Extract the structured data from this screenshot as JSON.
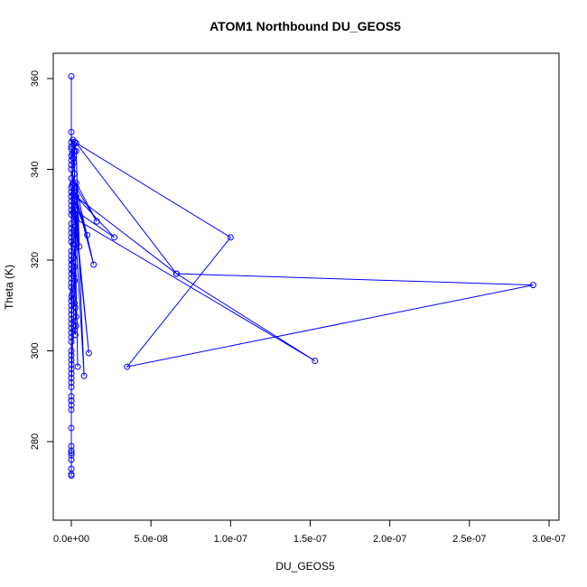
{
  "chart_data": {
    "type": "line",
    "title": "ATOM1 Northbound DU_GEOS5",
    "xlabel": "DU_GEOS5",
    "ylabel": "Theta (K)",
    "xlim": [
      -1e-09,
      3.05e-07
    ],
    "ylim": [
      268,
      362
    ],
    "xticks": [
      0,
      5e-08,
      1e-07,
      1.5e-07,
      2e-07,
      2.5e-07,
      3e-07
    ],
    "xtick_labels": [
      "0.0e+00",
      "5.0e-08",
      "1.0e-07",
      "1.5e-07",
      "2.0e-07",
      "2.5e-07",
      "3.0e-07"
    ],
    "yticks": [
      280,
      300,
      320,
      340,
      360
    ],
    "ytick_labels": [
      "280",
      "300",
      "320",
      "340",
      "360"
    ],
    "grid": false,
    "marker": "open-circle",
    "color": "#0000ff",
    "series": [
      {
        "x": [
          0,
          0,
          0,
          0,
          0,
          0,
          0,
          0,
          0,
          0,
          0,
          0,
          0,
          0,
          0,
          0,
          0,
          0,
          0,
          0,
          0,
          0,
          0,
          0,
          0,
          0,
          0,
          0,
          0,
          0,
          0,
          0,
          0,
          0,
          0,
          0,
          0,
          0,
          0,
          0,
          0,
          0,
          0,
          0,
          0,
          0,
          0,
          0,
          0,
          0,
          1e-09,
          1.5e-09,
          2e-09,
          5e-10,
          1e-09,
          1.5e-09,
          2e-09,
          1e-09,
          5e-10,
          2e-09,
          1e-09,
          2e-09,
          1.5e-09,
          1e-09,
          2e-09,
          2.5e-09,
          1.5e-09,
          2e-09,
          1e-09,
          2e-09,
          1.5e-09,
          1e-09,
          2e-09,
          1e-09,
          1.5e-09,
          2e-09,
          1e-09,
          5e-10,
          1e-09,
          2e-09,
          2.5e-09,
          3e-09,
          2e-09,
          3e-09,
          2e-09,
          2.5e-09,
          2e-09,
          3e-09,
          5e-09,
          2e-09,
          1e-08,
          2e-09,
          1.4e-08,
          3e-09,
          1.6e-08,
          3e-09,
          8e-09,
          2e-09,
          1.1e-08,
          2e-09,
          4e-09,
          2e-09,
          2.7e-08,
          3e-09,
          6.6e-08,
          3e-09,
          1e-07,
          3.5e-08,
          2.9e-07,
          6.6e-08,
          1.53e-07,
          3e-09,
          0,
          0,
          0,
          0
        ],
        "y": [
          360.5,
          348.2,
          346.0,
          345.0,
          344.5,
          343.0,
          342.0,
          341.0,
          340.0,
          338.0,
          336.0,
          335.0,
          334.0,
          333.0,
          332.0,
          331.0,
          330.0,
          328.0,
          327.0,
          326.0,
          325.0,
          324.0,
          322.0,
          321.0,
          320.0,
          319.0,
          318.0,
          317.0,
          316.0,
          315.0,
          314.0,
          312.0,
          311.0,
          310.0,
          309.0,
          308.0,
          307.0,
          306.0,
          305.0,
          304.0,
          303.0,
          302.0,
          300.0,
          299.0,
          298.0,
          297.0,
          296.0,
          295.0,
          294.0,
          293.0,
          346.5,
          345.5,
          344.0,
          343.5,
          342.5,
          341.5,
          339.0,
          337.0,
          336.5,
          335.5,
          334.5,
          333.5,
          332.5,
          330.5,
          329.5,
          327.5,
          326.5,
          325.5,
          323.5,
          322.5,
          320.5,
          319.5,
          318.5,
          317.5,
          316.5,
          315.5,
          313.5,
          312.5,
          311.5,
          310.5,
          309.5,
          307.5,
          306.5,
          305.5,
          304.5,
          303.5,
          346.0,
          344.0,
          323.0,
          333.0,
          325.5,
          335.0,
          319.0,
          336.0,
          328.5,
          337.0,
          294.5,
          330.0,
          299.5,
          332.0,
          296.5,
          331.0,
          325.0,
          334.0,
          317.0,
          345.8,
          325.0,
          296.5,
          314.5,
          317.0,
          297.8,
          329.0,
          292.0,
          290.0,
          289.0,
          288.0
        ]
      },
      {
        "x": [
          0,
          0,
          0,
          0,
          0,
          0,
          0,
          0,
          0,
          0,
          0
        ],
        "y": [
          289.0,
          287.0,
          283.0,
          279.0,
          278.0,
          277.5,
          277.0,
          276.0,
          274.0,
          272.8,
          272.5
        ]
      }
    ]
  }
}
